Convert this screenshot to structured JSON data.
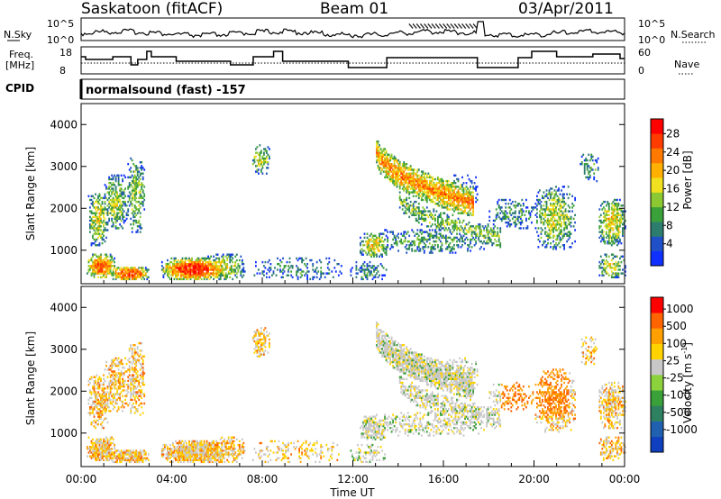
{
  "header": {
    "title": "Saskatoon (fitACF)",
    "beam": "Beam 01",
    "date": "03/Apr/2011"
  },
  "noise_panel": {
    "left_label": "N.Sky",
    "left_ticks": [
      "10^5",
      "10^0"
    ],
    "right_ticks": [
      "10^5",
      "10^0"
    ],
    "right_label": "N.Search"
  },
  "freq_panel": {
    "left_label_1": "Freq.",
    "left_label_2": "[MHz]",
    "left_ticks": [
      "18",
      "8"
    ],
    "right_ticks": [
      "60",
      "0"
    ],
    "right_label": "Nave"
  },
  "cpid": {
    "label": "CPID",
    "value": "normalsound (fast) -157"
  },
  "chart_data": [
    {
      "type": "heatmap",
      "name": "Power",
      "ylabel": "Slant Range [km]",
      "yticks": [
        "1000",
        "2000",
        "3000",
        "4000"
      ],
      "ylim": [
        200,
        4500
      ],
      "xlim": [
        0,
        24
      ],
      "colorbar": {
        "label": "Power [dB]",
        "ticks": [
          "4",
          "8",
          "12",
          "16",
          "20",
          "24",
          "28"
        ],
        "colors": [
          "#1030ff",
          "#2050c8",
          "#2d7d6e",
          "#3aa03a",
          "#8cc832",
          "#f0e020",
          "#ffb000",
          "#ff7800",
          "#ff3c00",
          "#ff0000"
        ]
      },
      "blobs": [
        {
          "t0": 0.2,
          "t1": 1.5,
          "r0": 300,
          "r1": 900,
          "mag": 0.8
        },
        {
          "t0": 0.3,
          "t1": 1.2,
          "r0": 1100,
          "r1": 2400,
          "mag": 0.55
        },
        {
          "t0": 1.0,
          "t1": 2.0,
          "r0": 1500,
          "r1": 2800,
          "mag": 0.5
        },
        {
          "t0": 2.0,
          "t1": 2.8,
          "r0": 1400,
          "r1": 3200,
          "mag": 0.45
        },
        {
          "t0": 1.2,
          "t1": 3.0,
          "r0": 250,
          "r1": 600,
          "mag": 0.85
        },
        {
          "t0": 3.5,
          "t1": 6.5,
          "r0": 250,
          "r1": 800,
          "mag": 0.9
        },
        {
          "t0": 5.5,
          "t1": 7.2,
          "r0": 250,
          "r1": 900,
          "mag": 0.5
        },
        {
          "t0": 7.5,
          "t1": 8.3,
          "r0": 2800,
          "r1": 3500,
          "mag": 0.5
        },
        {
          "t0": 7.5,
          "t1": 11.5,
          "r0": 250,
          "r1": 800,
          "mag": 0.25
        },
        {
          "t0": 11.8,
          "t1": 13.5,
          "r0": 250,
          "r1": 700,
          "mag": 0.3
        },
        {
          "t0": 12.3,
          "t1": 13.5,
          "r0": 800,
          "r1": 1400,
          "mag": 0.6
        },
        {
          "t0": 13.0,
          "t1": 17.8,
          "r0": 900,
          "r1": 1500,
          "mag": 0.35
        },
        {
          "t0": 16.0,
          "t1": 17.5,
          "r0": 2000,
          "r1": 2800,
          "mag": 0.25
        },
        {
          "t0": 18.0,
          "t1": 20.0,
          "r0": 1500,
          "r1": 2200,
          "mag": 0.3
        },
        {
          "t0": 20.0,
          "t1": 21.8,
          "r0": 1000,
          "r1": 2500,
          "mag": 0.5
        },
        {
          "t0": 22.0,
          "t1": 22.8,
          "r0": 2600,
          "r1": 3300,
          "mag": 0.35
        },
        {
          "t0": 22.8,
          "t1": 24.0,
          "r0": 1100,
          "r1": 2200,
          "mag": 0.6
        },
        {
          "t0": 22.8,
          "t1": 24.0,
          "r0": 300,
          "r1": 900,
          "mag": 0.5
        }
      ],
      "arcs": [
        {
          "t0": 13.0,
          "t1": 17.3,
          "r0": 3450,
          "r1": 2100,
          "w": 350,
          "mag": 0.75
        },
        {
          "t0": 14.0,
          "t1": 18.5,
          "r0": 2300,
          "r1": 1300,
          "w": 250,
          "mag": 0.45
        }
      ]
    },
    {
      "type": "heatmap",
      "name": "Velocity",
      "ylabel": "Slant Range [km]",
      "yticks": [
        "1000",
        "2000",
        "3000",
        "4000"
      ],
      "ylim": [
        200,
        4500
      ],
      "xlim": [
        0,
        24
      ],
      "xlabel": "Time UT",
      "xticks": [
        "00:00",
        "04:00",
        "08:00",
        "12:00",
        "16:00",
        "20:00",
        "00:00"
      ],
      "colorbar": {
        "label": "Velocity [m s^-1]",
        "ticks": [
          "1000",
          "500",
          "100",
          "25",
          "-25",
          "-100",
          "-500",
          "-1000"
        ],
        "colors": [
          "#1040c0",
          "#2060b0",
          "#2d8060",
          "#3aa03a",
          "#8cd23c",
          "#c8c8c8",
          "#ffd200",
          "#ffa000",
          "#ff6400",
          "#ff0000"
        ]
      }
    }
  ]
}
